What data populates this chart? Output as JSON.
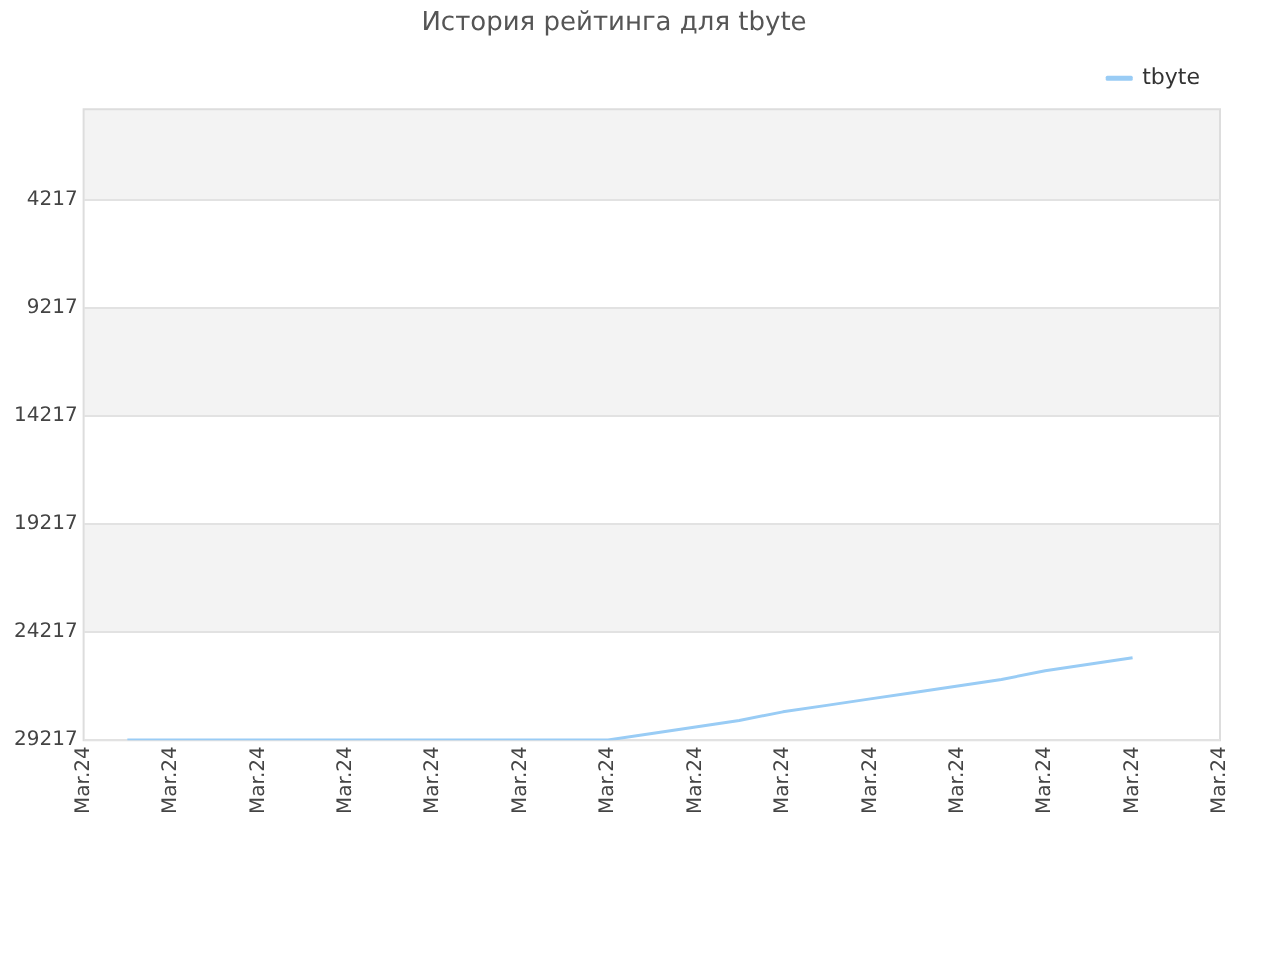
{
  "chart_data": {
    "type": "line",
    "title": "История рейтинга для tbyte",
    "categories": [
      "Mar.24",
      null,
      "Mar.24",
      null,
      "Mar.24",
      null,
      "Mar.24",
      null,
      "Mar.24",
      null,
      "Mar.24",
      null,
      "Mar.24",
      null,
      "Mar.24",
      null,
      "Mar.24",
      null,
      "Mar.24",
      null,
      "Mar.24",
      null,
      "Mar.24",
      null,
      "Mar.24",
      null,
      "Mar.24"
    ],
    "series": [
      {
        "name": "tbyte",
        "color": "#99ccf5",
        "values": [
          null,
          29200,
          29200,
          29200,
          29200,
          29200,
          29200,
          29200,
          29200,
          29200,
          29200,
          29200,
          29200,
          28900,
          28600,
          28300,
          27900,
          27600,
          27300,
          27000,
          26700,
          26400,
          26000,
          25700,
          25400,
          null,
          null
        ]
      }
    ],
    "ylim": [
      29217,
      0
    ],
    "yticks": [
      4217,
      9217,
      14217,
      19217,
      24217,
      29217
    ],
    "grid": "y",
    "legend": "top right",
    "marker": "none",
    "line_style": "solid"
  }
}
